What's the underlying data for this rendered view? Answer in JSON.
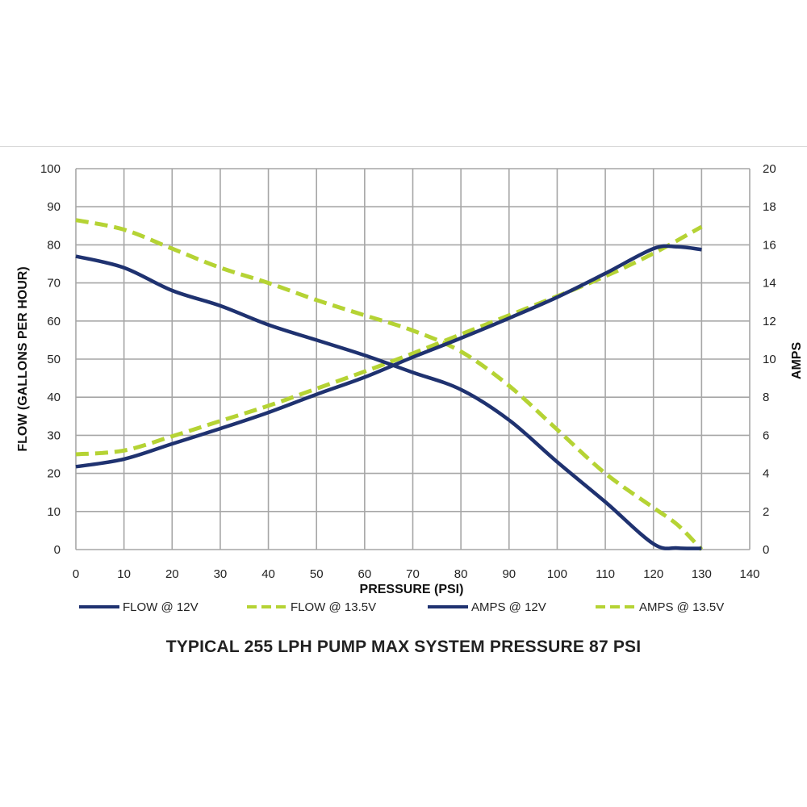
{
  "chart_data": {
    "type": "line",
    "title": "TYPICAL 255 LPH PUMP MAX SYSTEM PRESSURE 87 PSI",
    "xlabel": "PRESSURE (PSI)",
    "ylabel": "FLOW (GALLONS PER HOUR)",
    "y2label": "AMPS",
    "xlim": [
      0,
      140
    ],
    "ylim": [
      0,
      100
    ],
    "y2lim": [
      0,
      20
    ],
    "x_ticks": [
      0,
      10,
      20,
      30,
      40,
      50,
      60,
      70,
      80,
      90,
      100,
      110,
      120,
      130,
      140
    ],
    "y_ticks": [
      0,
      10,
      20,
      30,
      40,
      50,
      60,
      70,
      80,
      90,
      100
    ],
    "y2_ticks": [
      0,
      2,
      4,
      6,
      8,
      10,
      12,
      14,
      16,
      18,
      20
    ],
    "grid": true,
    "legend_position": "bottom",
    "series": [
      {
        "name": "FLOW @ 12V",
        "axis": "left",
        "color": "#1f3270",
        "style": "solid",
        "points": [
          [
            0,
            77
          ],
          [
            10,
            74
          ],
          [
            20,
            68
          ],
          [
            30,
            64
          ],
          [
            40,
            59
          ],
          [
            50,
            55
          ],
          [
            60,
            51
          ],
          [
            70,
            46.5
          ],
          [
            80,
            42
          ],
          [
            90,
            34
          ],
          [
            100,
            23
          ],
          [
            110,
            12.5
          ],
          [
            120,
            1.5
          ],
          [
            125,
            0.4
          ],
          [
            130,
            0.3
          ]
        ]
      },
      {
        "name": "FLOW @ 13.5V",
        "axis": "left",
        "color": "#b5d334",
        "style": "dashed",
        "points": [
          [
            0,
            86.5
          ],
          [
            10,
            84
          ],
          [
            20,
            79
          ],
          [
            30,
            74
          ],
          [
            40,
            70
          ],
          [
            50,
            65.5
          ],
          [
            60,
            61.5
          ],
          [
            70,
            57.5
          ],
          [
            80,
            52
          ],
          [
            90,
            43
          ],
          [
            100,
            31.5
          ],
          [
            110,
            20
          ],
          [
            120,
            11
          ],
          [
            125,
            6.5
          ],
          [
            130,
            0
          ]
        ]
      },
      {
        "name": "AMPS @ 12V",
        "axis": "right",
        "color": "#1f3270",
        "style": "solid",
        "points": [
          [
            0,
            4.35
          ],
          [
            10,
            4.75
          ],
          [
            20,
            5.55
          ],
          [
            30,
            6.35
          ],
          [
            40,
            7.2
          ],
          [
            50,
            8.15
          ],
          [
            60,
            9.05
          ],
          [
            70,
            10.1
          ],
          [
            80,
            11.1
          ],
          [
            90,
            12.15
          ],
          [
            100,
            13.25
          ],
          [
            110,
            14.5
          ],
          [
            120,
            15.8
          ],
          [
            125,
            15.9
          ],
          [
            130,
            15.75
          ]
        ]
      },
      {
        "name": "AMPS @ 13.5V",
        "axis": "right",
        "color": "#b5d334",
        "style": "dashed",
        "points": [
          [
            0,
            5.0
          ],
          [
            10,
            5.2
          ],
          [
            20,
            5.95
          ],
          [
            30,
            6.75
          ],
          [
            40,
            7.55
          ],
          [
            50,
            8.45
          ],
          [
            60,
            9.35
          ],
          [
            70,
            10.3
          ],
          [
            80,
            11.3
          ],
          [
            90,
            12.3
          ],
          [
            100,
            13.3
          ],
          [
            110,
            14.35
          ],
          [
            120,
            15.55
          ],
          [
            130,
            16.95
          ]
        ]
      }
    ]
  }
}
